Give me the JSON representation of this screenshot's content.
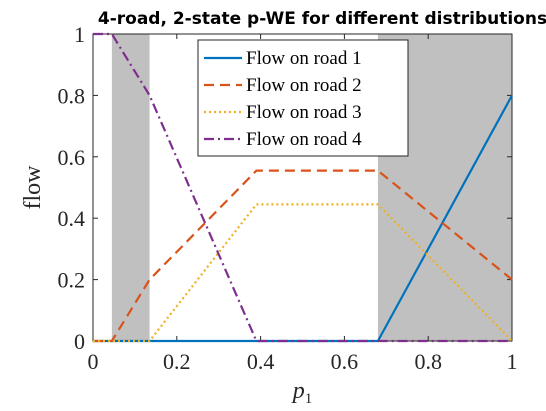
{
  "chart_data": {
    "type": "line",
    "title": "4-road, 2-state p-WE for different distributions",
    "xlabel": "p",
    "xlabel_subscript": "1",
    "ylabel": "flow",
    "xlim": [
      0,
      1
    ],
    "ylim": [
      0,
      1
    ],
    "xticks": [
      0,
      0.2,
      0.4,
      0.6,
      0.8,
      1
    ],
    "xtick_labels": [
      "0",
      "0.2",
      "0.4",
      "0.6",
      "0.8",
      "1"
    ],
    "yticks": [
      0,
      0.2,
      0.4,
      0.6,
      0.8,
      1
    ],
    "ytick_labels": [
      "0",
      "0.2",
      "0.4",
      "0.6",
      "0.8",
      "1"
    ],
    "grid": false,
    "legend_position": "top-right",
    "shaded_regions": [
      {
        "x_start": 0.045,
        "x_end": 0.135
      },
      {
        "x_start": 0.68,
        "x_end": 1.0
      }
    ],
    "shade_color": "#c0c0c0",
    "series": [
      {
        "name": "Flow on road 1",
        "color": "#0072bd",
        "style": "solid",
        "x": [
          0,
          0.68,
          1.0
        ],
        "y": [
          0,
          0,
          0.8
        ]
      },
      {
        "name": "Flow on road 2",
        "color": "#d95319",
        "style": "dashed",
        "x": [
          0,
          0.045,
          0.135,
          0.39,
          0.68,
          1.0
        ],
        "y": [
          0,
          0,
          0.2,
          0.555,
          0.555,
          0.2
        ]
      },
      {
        "name": "Flow on road 3",
        "color": "#edb120",
        "style": "dotted",
        "x": [
          0,
          0.135,
          0.39,
          0.68,
          1.0
        ],
        "y": [
          0,
          0,
          0.445,
          0.445,
          0
        ]
      },
      {
        "name": "Flow on road 4",
        "color": "#7e2f8e",
        "style": "dashdot",
        "x": [
          0,
          0.045,
          0.135,
          0.39,
          0.68,
          1.0
        ],
        "y": [
          1,
          1,
          0.8,
          0,
          0,
          0
        ]
      }
    ]
  }
}
